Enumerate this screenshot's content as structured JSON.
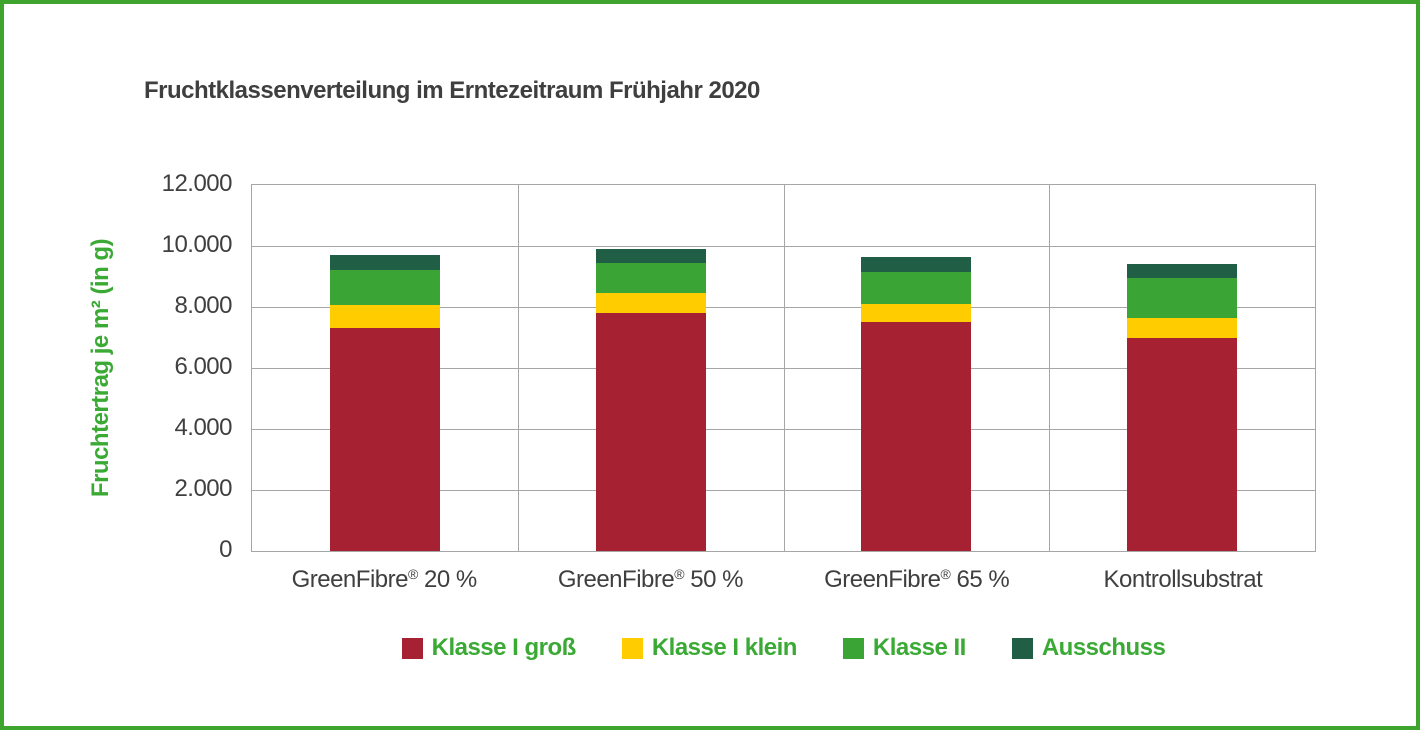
{
  "frame": {
    "border_color": "#3FA42E",
    "background": "#ffffff"
  },
  "style": {
    "title_color": "#3F3F3F",
    "axis_text_color": "#3F3F3F",
    "gridline_color": "#A6A6A6",
    "accent_green": "#3AAA35"
  },
  "chart_data": {
    "type": "bar",
    "stacked": true,
    "title": "Fruchtklassenverteilung im Erntezeitraum Frühjahr 2020",
    "xlabel": "",
    "ylabel": "Fruchtertrag je m² (in g)",
    "categories": [
      "GreenFibre® 20 %",
      "GreenFibre® 50 %",
      "GreenFibre® 65 %",
      "Kontrollsubstrat"
    ],
    "series": [
      {
        "name": "Klasse I groß",
        "color": "#A62233",
        "values": [
          7300,
          7800,
          7500,
          7000
        ]
      },
      {
        "name": "Klasse I klein",
        "color": "#FFCC00",
        "values": [
          750,
          650,
          600,
          650
        ]
      },
      {
        "name": "Klasse II",
        "color": "#3AA435",
        "values": [
          1150,
          1000,
          1050,
          1300
        ]
      },
      {
        "name": "Ausschuss",
        "color": "#215E46",
        "values": [
          500,
          450,
          500,
          450
        ]
      }
    ],
    "totals": [
      9700,
      9900,
      9650,
      9400
    ],
    "ylim": [
      0,
      12000
    ],
    "yticks": [
      0,
      2000,
      4000,
      6000,
      8000,
      10000,
      12000
    ],
    "ytick_labels": [
      "0",
      "2.000",
      "4.000",
      "6.000",
      "8.000",
      "10.000",
      "12.000"
    ],
    "grid": true,
    "legend_position": "bottom"
  }
}
